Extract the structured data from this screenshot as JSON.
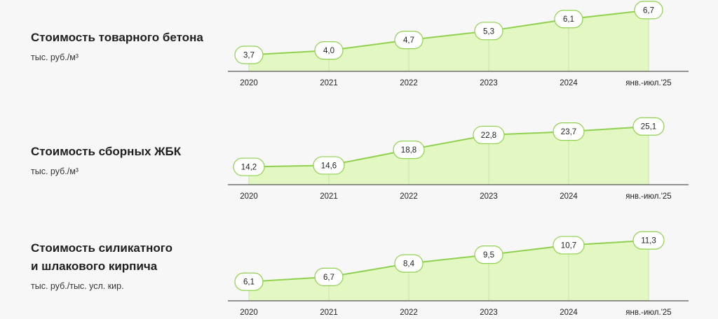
{
  "chart_data": [
    {
      "type": "area",
      "title": "Стоимость товарного бетона",
      "unit": "тыс. руб./м³",
      "categories": [
        "2020",
        "2021",
        "2022",
        "2023",
        "2024",
        "янв.-июл.'25"
      ],
      "values": [
        3.7,
        4.0,
        4.7,
        5.3,
        6.1,
        6.7
      ],
      "labels": [
        "3,7",
        "4,0",
        "4,7",
        "5,3",
        "6,1",
        "6,7"
      ],
      "ylim": [
        2.6,
        7.0
      ],
      "grid": false
    },
    {
      "type": "area",
      "title": "Стоимость сборных ЖБК",
      "unit": "тыс. руб./м³",
      "categories": [
        "2020",
        "2021",
        "2022",
        "2023",
        "2024",
        "янв.-июл.'25"
      ],
      "values": [
        14.2,
        14.6,
        18.8,
        22.8,
        23.7,
        25.1
      ],
      "labels": [
        "14,2",
        "14,6",
        "18,8",
        "22,8",
        "23,7",
        "25,1"
      ],
      "ylim": [
        9.4,
        27.5
      ],
      "grid": false
    },
    {
      "type": "area",
      "title_lines": [
        "Стоимость силикатного",
        "и шлакового кирпича"
      ],
      "unit": "тыс. руб./тыс. усл. кир.",
      "categories": [
        "2020",
        "2021",
        "2022",
        "2023",
        "2024",
        "янв.-июл.'25"
      ],
      "values": [
        6.1,
        6.7,
        8.4,
        9.5,
        10.7,
        11.3
      ],
      "labels": [
        "6,1",
        "6,7",
        "8,4",
        "9,5",
        "10,7",
        "11,3"
      ],
      "ylim": [
        3.7,
        12.5
      ],
      "grid": false
    }
  ],
  "style": {
    "line_color": "#8fd14f",
    "fill_color": "#e3f7c2",
    "badge_border": "#8fd14f",
    "axis_color": "#555555",
    "drop_line_color": "#c9e3ae"
  }
}
